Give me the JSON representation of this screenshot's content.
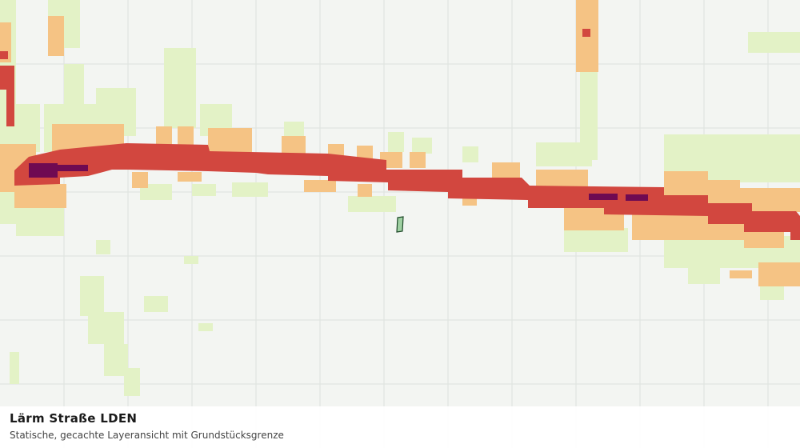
{
  "legend": {
    "title": "Lärm Straße LDEN",
    "subtitle": "Statische, gecachte Layeransicht mit Grundstücksgrenze"
  }
}
